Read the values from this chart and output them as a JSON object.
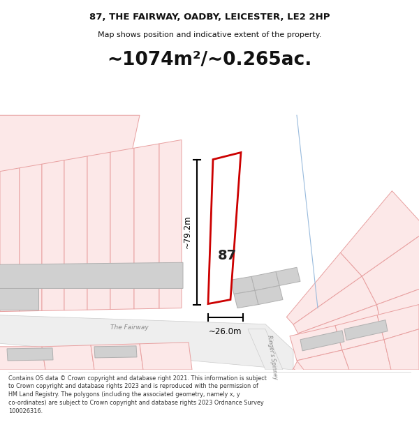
{
  "title_line1": "87, THE FAIRWAY, OADBY, LEICESTER, LE2 2HP",
  "title_line2": "Map shows position and indicative extent of the property.",
  "area_text": "~1074m²/~0.265ac.",
  "dimension_width": "~26.0m",
  "dimension_height": "~79.2m",
  "label_87": "87",
  "road_label1": "The Fairway",
  "road_label2": "Ringer's Spinney",
  "footer_lines": [
    "Contains OS data © Crown copyright and database right 2021. This information is subject to Crown copyright and database rights 2023 and is reproduced with the permission of",
    "HM Land Registry. The polygons (including the associated geometry, namely x, y co-ordinates) are subject to Crown copyright and database rights 2023 Ordnance Survey",
    "100026316."
  ],
  "bg_color": "#ffffff",
  "neighbor_fill": "#fce8e8",
  "neighbor_edge": "#e8a0a0",
  "gray_fill": "#d0d0d0",
  "gray_edge": "#b0b0b0",
  "plot_fill": "#ffffff",
  "plot_edge": "#cc0000",
  "road_fill": "#eeeeee",
  "road_edge": "#cccccc",
  "meas_color": "#000000",
  "blue_line": "#99bbdd",
  "road_text": "#888888",
  "footer_text_color": "#333333",
  "title_color": "#111111"
}
